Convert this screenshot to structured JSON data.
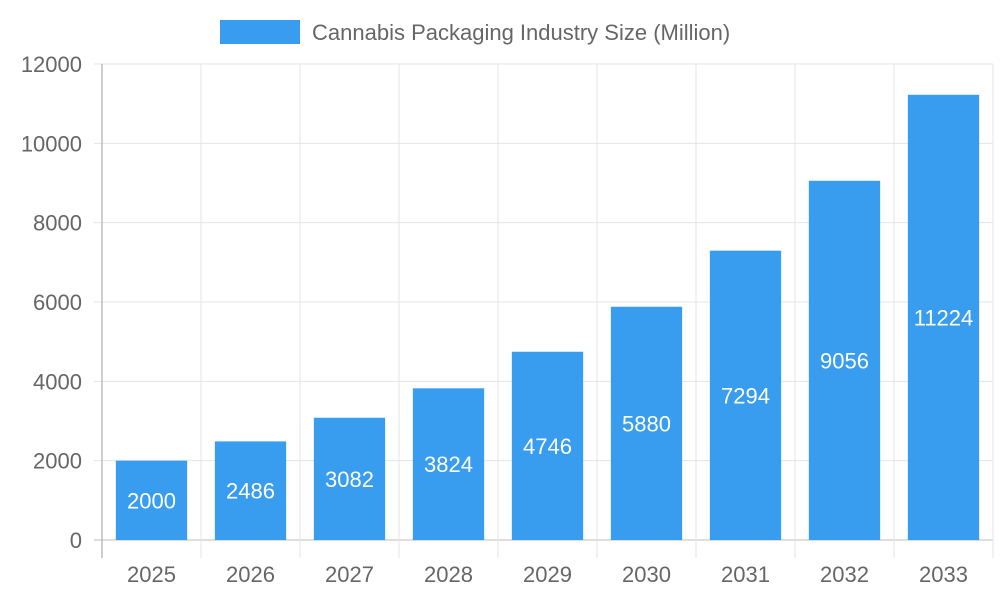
{
  "chart_data": {
    "type": "bar",
    "categories": [
      "2025",
      "2026",
      "2027",
      "2028",
      "2029",
      "2030",
      "2031",
      "2032",
      "2033"
    ],
    "series": [
      {
        "name": "Cannabis Packaging Industry Size (Million)",
        "values": [
          2000,
          2486,
          3082,
          3824,
          4746,
          5880,
          7294,
          9056,
          11224
        ]
      }
    ],
    "ylim": [
      0,
      12000
    ],
    "yticks": [
      0,
      2000,
      4000,
      6000,
      8000,
      10000,
      12000
    ],
    "grid": true,
    "legend": "top",
    "data_labels": true,
    "colors": {
      "bar": "#389cef",
      "text": "#666666",
      "grid": "#e5e5e5",
      "axis": "#bdbdbd",
      "label": "#ffffff"
    }
  }
}
